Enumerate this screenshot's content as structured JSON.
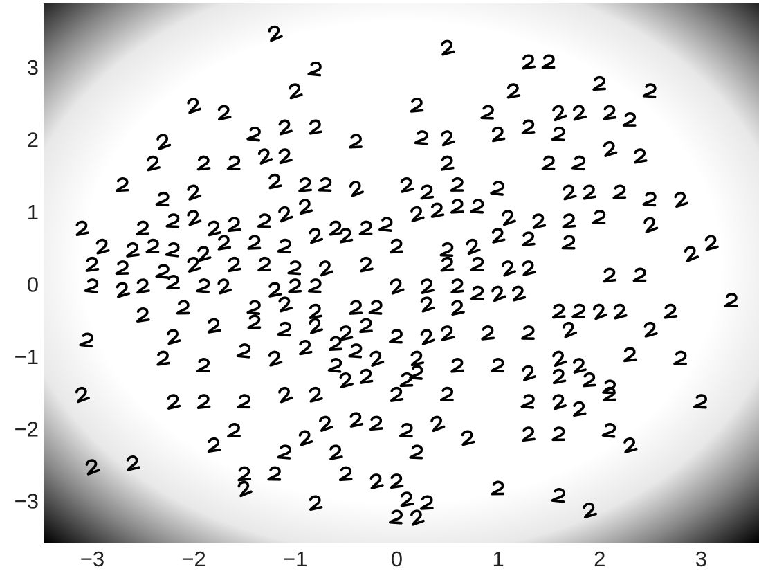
{
  "chart_data": {
    "type": "scatter",
    "x": [
      -1.2,
      0.5,
      1.3,
      1.5,
      -0.8,
      -1.0,
      1.15,
      2.0,
      2.5,
      -2.0,
      -1.7,
      0.2,
      0.9,
      1.6,
      1.8,
      2.1,
      2.3,
      -1.4,
      -1.1,
      -0.8,
      -0.4,
      0.25,
      0.5,
      1.0,
      1.3,
      1.6,
      -2.3,
      -2.4,
      -1.9,
      -1.6,
      -1.3,
      -1.1,
      0.5,
      1.5,
      1.8,
      2.1,
      2.4,
      -2.7,
      -2.3,
      -2.0,
      -1.2,
      -0.9,
      -0.7,
      -0.4,
      0.1,
      0.3,
      0.6,
      1.0,
      1.7,
      1.9,
      2.2,
      2.5,
      2.8,
      -3.1,
      -2.5,
      -2.2,
      -2.0,
      -1.8,
      -1.6,
      -1.3,
      -1.1,
      -0.9,
      -0.6,
      -0.3,
      -0.1,
      0.2,
      0.4,
      0.6,
      0.8,
      1.1,
      1.4,
      1.7,
      2.0,
      2.5,
      -2.9,
      -2.6,
      -2.4,
      -2.2,
      -1.9,
      -1.7,
      -1.4,
      -1.1,
      -0.8,
      -0.5,
      0,
      0.5,
      0.75,
      1.0,
      1.3,
      1.7,
      2.9,
      3.1,
      -3.0,
      -2.7,
      -2.3,
      -2.0,
      -1.6,
      -1.3,
      -1.0,
      -0.7,
      -0.3,
      0.5,
      0.8,
      1.1,
      1.3,
      2.1,
      2.4,
      -3.0,
      -2.7,
      -2.5,
      -2.2,
      -1.9,
      -1.7,
      -1.2,
      -1.0,
      -0.8,
      0,
      0.3,
      0.6,
      0.8,
      1.0,
      1.2,
      -2.5,
      -2.1,
      -1.4,
      -1.1,
      -0.8,
      -0.4,
      -0.2,
      0.3,
      0.6,
      1.6,
      1.8,
      2.0,
      2.2,
      2.7,
      3.3,
      -3.05,
      -2.2,
      -1.8,
      -1.4,
      -1.1,
      -0.8,
      -0.5,
      -0.3,
      0,
      0.3,
      0.5,
      0.9,
      1.3,
      1.7,
      2.5,
      -2.3,
      -1.9,
      -1.5,
      -1.2,
      -0.9,
      -0.6,
      -0.4,
      -0.2,
      0.2,
      0.6,
      1.0,
      1.6,
      1.8,
      2.3,
      2.8,
      -0.6,
      -0.5,
      -0.3,
      0.1,
      0.2,
      1.3,
      1.6,
      1.9,
      2.1,
      -3.1,
      -2.2,
      -1.9,
      -1.5,
      -1.1,
      -0.8,
      0,
      0.5,
      1.3,
      1.6,
      1.8,
      2.1,
      3.0,
      -0.7,
      -0.4,
      -0.2,
      0.1,
      0.4,
      0.7,
      1.3,
      1.6,
      2.1,
      2.3,
      -1.8,
      -1.6,
      -1.1,
      -0.9,
      -0.6,
      -0.5,
      0.2,
      -3.0,
      -2.6,
      -1.5,
      -1.2,
      -1.5,
      -0.2,
      0,
      1.0,
      1.6,
      1.9,
      0.1,
      0.3,
      0,
      0.2,
      -0.8
    ],
    "y": [
      3.5,
      3.3,
      3.1,
      3.1,
      3.0,
      2.7,
      2.7,
      2.8,
      2.7,
      2.5,
      2.4,
      2.5,
      2.4,
      2.4,
      2.4,
      2.4,
      2.3,
      2.1,
      2.2,
      2.2,
      2.0,
      2.05,
      2.05,
      2.1,
      2.2,
      2.1,
      2.0,
      1.7,
      1.7,
      1.7,
      1.8,
      1.8,
      1.7,
      1.7,
      1.7,
      1.9,
      1.8,
      1.4,
      1.2,
      1.3,
      1.45,
      1.4,
      1.4,
      1.35,
      1.4,
      1.3,
      1.4,
      1.35,
      1.3,
      1.3,
      1.3,
      1.2,
      1.2,
      0.8,
      0.8,
      0.9,
      0.95,
      0.8,
      0.85,
      0.9,
      1.0,
      1.1,
      0.8,
      0.8,
      0.85,
      1.0,
      1.05,
      1.1,
      1.1,
      0.95,
      0.9,
      0.9,
      0.95,
      0.85,
      0.55,
      0.5,
      0.55,
      0.5,
      0.45,
      0.6,
      0.6,
      0.55,
      0.7,
      0.7,
      0.55,
      0.5,
      0.55,
      0.7,
      0.65,
      0.6,
      0.45,
      0.6,
      0.3,
      0.25,
      0.2,
      0.3,
      0.3,
      0.3,
      0.25,
      0.25,
      0.3,
      0.3,
      0.3,
      0.25,
      0.25,
      0.15,
      0.15,
      0,
      -0.05,
      0,
      0.05,
      0,
      0,
      -0.05,
      0,
      0,
      0,
      0,
      0,
      -0.1,
      -0.1,
      -0.1,
      -0.4,
      -0.3,
      -0.3,
      -0.25,
      -0.35,
      -0.3,
      -0.3,
      -0.25,
      -0.3,
      -0.35,
      -0.35,
      -0.35,
      -0.35,
      -0.35,
      -0.2,
      -0.75,
      -0.7,
      -0.55,
      -0.5,
      -0.6,
      -0.55,
      -0.65,
      -0.55,
      -0.7,
      -0.7,
      -0.65,
      -0.65,
      -0.65,
      -0.6,
      -0.6,
      -1.0,
      -1.1,
      -0.9,
      -1.0,
      -0.85,
      -0.8,
      -0.9,
      -1.0,
      -1.0,
      -1.1,
      -1.1,
      -1.0,
      -1.1,
      -0.95,
      -1.0,
      -1.1,
      -1.3,
      -1.25,
      -1.3,
      -1.2,
      -1.2,
      -1.25,
      -1.3,
      -1.4,
      -1.5,
      -1.6,
      -1.6,
      -1.6,
      -1.5,
      -1.5,
      -1.5,
      -1.5,
      -1.6,
      -1.6,
      -1.7,
      -1.5,
      -1.6,
      -1.9,
      -1.85,
      -1.9,
      -2.0,
      -1.9,
      -2.1,
      -2.05,
      -2.05,
      -2.0,
      -2.2,
      -2.2,
      -2.0,
      -2.3,
      -2.1,
      -2.3,
      -2.6,
      -2.3,
      -2.5,
      -2.45,
      -2.6,
      -2.6,
      -2.8,
      -2.7,
      -2.7,
      -2.8,
      -2.9,
      -3.1,
      -2.95,
      -3.0,
      -3.2,
      -3.2,
      -3.0
    ],
    "color": "#000000",
    "xlim": [
      -3.48,
      3.57
    ],
    "ylim": [
      -3.56,
      3.91
    ],
    "xticks": [
      {
        "value": -3,
        "label": "−3"
      },
      {
        "value": -2,
        "label": "−2"
      },
      {
        "value": -1,
        "label": "−1"
      },
      0,
      1,
      2,
      3
    ],
    "yticks": [
      {
        "value": -3,
        "label": "−3"
      },
      {
        "value": -2,
        "label": "−2"
      },
      {
        "value": -1,
        "label": "−1"
      },
      0,
      1,
      2,
      3
    ]
  }
}
